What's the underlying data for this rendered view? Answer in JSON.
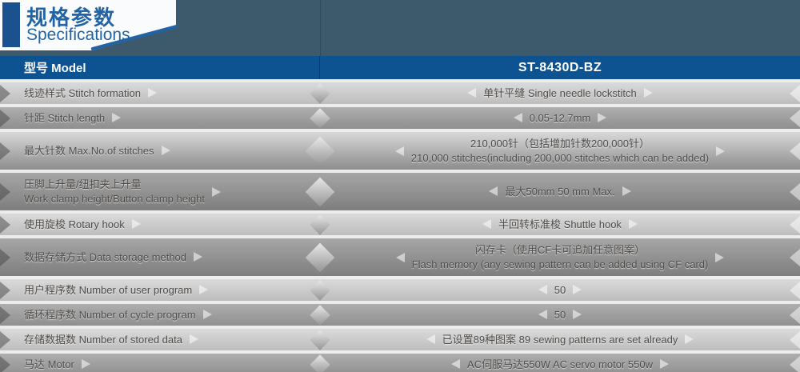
{
  "colors": {
    "background_slate": "#3d5a6d",
    "header_blue": "#0d5391",
    "accent_blue": "#2263a6",
    "title_bar_blue": "#1c5190",
    "row_light_gray": "#cfcfcf",
    "row_dark_gray": "#8f8f8f",
    "row_text_gray": "#4d4a47"
  },
  "title": {
    "zh": "规格参数",
    "en": "Specifications"
  },
  "table": {
    "model_label": "型号 Model",
    "model_value": "ST-8430D-BZ",
    "rows": [
      {
        "label": "线迹样式 Stitch formation",
        "value": "单针平缝 Single needle lockstitch"
      },
      {
        "label": "针距 Stitch length",
        "value": "0.05-12.7mm"
      },
      {
        "label": "最大针数 Max.No.of stitches",
        "value": "210,000针（包括增加针数200,000针）",
        "value2": "210,000 stitches(including 200,000 stitches which can be added)"
      },
      {
        "label": "压脚上升量/纽扣夹上升量",
        "label2": "Work clamp height/Button clamp height",
        "value": "最大50mm 50 mm Max."
      },
      {
        "label": "使用旋梭 Rotary hook",
        "value": "半回转标准梭 Shuttle hook"
      },
      {
        "label": "数据存储方式 Data storage method",
        "value": "闪存卡（使用CF卡可追加任意图案）",
        "value2": "Flash memory (any sewing pattern can be added using CF card)"
      },
      {
        "label": "用户程序数 Number of user program",
        "value": "50"
      },
      {
        "label": "循环程序数 Number of cycle program",
        "value": "50"
      },
      {
        "label": "存储数据数 Number of stored data",
        "value": "已设置89种图案 89 sewing patterns are set already"
      },
      {
        "label": "马达 Motor",
        "value": "AC伺服马达550W AC servo motor 550w"
      }
    ]
  }
}
